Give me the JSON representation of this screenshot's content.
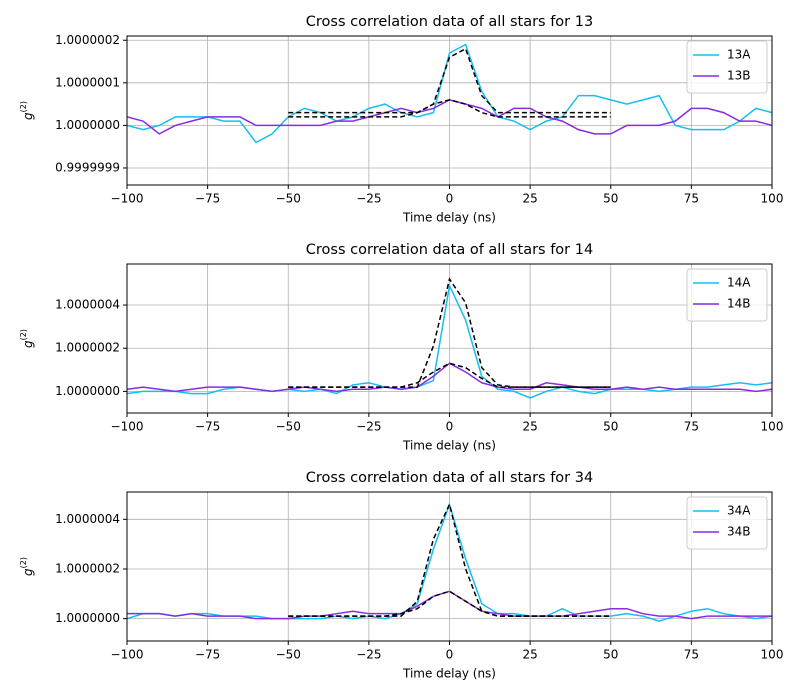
{
  "chart_data": [
    {
      "type": "line",
      "title": "Cross correlation data of all stars for 13",
      "xlabel": "Time delay (ns)",
      "ylabel": "g",
      "ylabel_sup": "(2)",
      "x": [
        -100,
        -95,
        -90,
        -85,
        -80,
        -75,
        -70,
        -65,
        -60,
        -55,
        -50,
        -45,
        -40,
        -35,
        -30,
        -25,
        -20,
        -15,
        -10,
        -5,
        0,
        5,
        10,
        15,
        20,
        25,
        30,
        35,
        40,
        45,
        50,
        55,
        60,
        65,
        70,
        75,
        80,
        85,
        90,
        95,
        100
      ],
      "xlim": [
        -100,
        100
      ],
      "xticks": [
        {
          "value": -100,
          "label": "−100"
        },
        {
          "value": -75,
          "label": "−75"
        },
        {
          "value": -50,
          "label": "−50"
        },
        {
          "value": -25,
          "label": "−25"
        },
        0,
        25,
        50,
        75,
        100
      ],
      "ylim": [
        0.99999986,
        1.00000021
      ],
      "yticks": [
        0.9999999,
        {
          "value": 1,
          "label": "1.0000000"
        },
        1.0000001,
        1.0000002
      ],
      "grid": true,
      "legend": "upper right",
      "series": [
        {
          "name": "13A",
          "color": "#16bff0",
          "values": [
            1,
            0.99999999,
            1,
            1.00000002,
            1.00000002,
            1.00000002,
            1.00000001,
            1.00000001,
            0.99999996,
            0.99999998,
            1.00000002,
            1.00000004,
            1.00000003,
            1.00000001,
            1.00000002,
            1.00000004,
            1.00000005,
            1.00000003,
            1.00000002,
            1.00000003,
            1.00000017,
            1.00000019,
            1.00000008,
            1.00000002,
            1.00000001,
            0.99999999,
            1.00000001,
            1.00000002,
            1.00000007,
            1.00000007,
            1.00000006,
            1.00000005,
            1.00000006,
            1.00000007,
            1,
            0.99999999,
            0.99999999,
            0.99999999,
            1.00000001,
            1.00000004,
            1.00000003
          ]
        },
        {
          "name": "13B",
          "color": "#8a2be2",
          "values": [
            1.00000002,
            1.00000001,
            0.99999998,
            1,
            1.00000001,
            1.00000002,
            1.00000002,
            1.00000002,
            1,
            1,
            1,
            1,
            1,
            1.00000001,
            1.00000001,
            1.00000002,
            1.00000003,
            1.00000004,
            1.00000003,
            1.00000004,
            1.00000006,
            1.00000005,
            1.00000004,
            1.00000002,
            1.00000004,
            1.00000004,
            1.00000002,
            1.00000001,
            0.99999999,
            0.99999998,
            0.99999998,
            1,
            1,
            1,
            1.00000001,
            1.00000004,
            1.00000004,
            1.00000003,
            1.00000001,
            1.00000001,
            1
          ]
        }
      ],
      "fit_x": [
        -50,
        -45,
        -40,
        -35,
        -30,
        -25,
        -20,
        -15,
        -10,
        -5,
        0,
        5,
        10,
        15,
        20,
        25,
        30,
        35,
        40,
        45,
        50
      ],
      "fits": [
        {
          "color": "#000000",
          "values": [
            1.00000003,
            1.00000003,
            1.00000003,
            1.00000003,
            1.00000003,
            1.00000003,
            1.00000003,
            1.00000003,
            1.00000003,
            1.00000005,
            1.00000016,
            1.00000018,
            1.00000007,
            1.00000003,
            1.00000003,
            1.00000003,
            1.00000003,
            1.00000003,
            1.00000003,
            1.00000003,
            1.00000003
          ]
        },
        {
          "color": "#000000",
          "values": [
            1.00000002,
            1.00000002,
            1.00000002,
            1.00000002,
            1.00000002,
            1.00000002,
            1.00000002,
            1.00000002,
            1.00000003,
            1.00000005,
            1.00000006,
            1.00000005,
            1.00000003,
            1.00000002,
            1.00000002,
            1.00000002,
            1.00000002,
            1.00000002,
            1.00000002,
            1.00000002,
            1.00000002
          ]
        }
      ]
    },
    {
      "type": "line",
      "title": "Cross correlation data of all stars for 14",
      "xlabel": "Time delay (ns)",
      "ylabel": "g",
      "ylabel_sup": "(2)",
      "x": [
        -100,
        -95,
        -90,
        -85,
        -80,
        -75,
        -70,
        -65,
        -60,
        -55,
        -50,
        -45,
        -40,
        -35,
        -30,
        -25,
        -20,
        -15,
        -10,
        -5,
        0,
        5,
        10,
        15,
        20,
        25,
        30,
        35,
        40,
        45,
        50,
        55,
        60,
        65,
        70,
        75,
        80,
        85,
        90,
        95,
        100
      ],
      "xlim": [
        -100,
        100
      ],
      "xticks": [
        {
          "value": -100,
          "label": "−100"
        },
        {
          "value": -75,
          "label": "−75"
        },
        {
          "value": -50,
          "label": "−50"
        },
        {
          "value": -25,
          "label": "−25"
        },
        0,
        25,
        50,
        75,
        100
      ],
      "ylim": [
        0.9999999,
        1.00000059
      ],
      "yticks": [
        {
          "value": 1,
          "label": "1.0000000"
        },
        1.0000002,
        1.0000004
      ],
      "grid": true,
      "legend": "upper right",
      "series": [
        {
          "name": "14A",
          "color": "#16bff0",
          "values": [
            0.99999999,
            1,
            1,
            1,
            0.99999999,
            0.99999999,
            1.00000001,
            1.00000002,
            1.00000001,
            1,
            1.00000001,
            1,
            1.00000001,
            0.99999999,
            1.00000003,
            1.00000004,
            1.00000002,
            1.00000001,
            1.00000002,
            1.00000005,
            1.00000049,
            1.00000033,
            1.00000007,
            1.00000001,
            1,
            0.99999997,
            1,
            1.00000002,
            1,
            0.99999999,
            1.00000001,
            1.00000001,
            1.00000001,
            1,
            1.00000001,
            1.00000002,
            1.00000002,
            1.00000003,
            1.00000004,
            1.00000003,
            1.00000004
          ]
        },
        {
          "name": "14B",
          "color": "#8a2be2",
          "values": [
            1.00000001,
            1.00000002,
            1.00000001,
            1,
            1.00000001,
            1.00000002,
            1.00000002,
            1.00000002,
            1.00000001,
            1,
            1.00000001,
            1.00000002,
            1.00000001,
            1,
            1.00000001,
            1.00000001,
            1.00000002,
            1.00000001,
            1.00000002,
            1.00000007,
            1.00000013,
            1.00000009,
            1.00000004,
            1.00000002,
            1.00000001,
            1.00000001,
            1.00000004,
            1.00000003,
            1.00000002,
            1.00000001,
            1.00000001,
            1.00000002,
            1.00000001,
            1.00000002,
            1.00000001,
            1.00000001,
            1.00000001,
            1.00000001,
            1.00000001,
            1,
            1.00000001
          ]
        }
      ],
      "fit_x": [
        -50,
        -45,
        -40,
        -35,
        -30,
        -25,
        -20,
        -15,
        -10,
        -5,
        0,
        5,
        10,
        15,
        20,
        25,
        30,
        35,
        40,
        45,
        50
      ],
      "fits": [
        {
          "color": "#000000",
          "values": [
            1.00000002,
            1.00000002,
            1.00000002,
            1.00000002,
            1.00000002,
            1.00000002,
            1.00000002,
            1.00000002,
            1.00000002,
            1.00000021,
            1.00000052,
            1.00000041,
            1.00000011,
            1.00000003,
            1.00000002,
            1.00000002,
            1.00000002,
            1.00000002,
            1.00000002,
            1.00000002,
            1.00000002
          ]
        },
        {
          "color": "#000000",
          "values": [
            1.00000002,
            1.00000002,
            1.00000002,
            1.00000002,
            1.00000002,
            1.00000002,
            1.00000002,
            1.00000002,
            1.00000004,
            1.00000009,
            1.00000013,
            1.00000011,
            1.00000006,
            1.00000002,
            1.00000002,
            1.00000002,
            1.00000002,
            1.00000002,
            1.00000002,
            1.00000002,
            1.00000002
          ]
        }
      ]
    },
    {
      "type": "line",
      "title": "Cross correlation data of all stars for 34",
      "xlabel": "Time delay (ns)",
      "ylabel": "g",
      "ylabel_sup": "(2)",
      "x": [
        -100,
        -95,
        -90,
        -85,
        -80,
        -75,
        -70,
        -65,
        -60,
        -55,
        -50,
        -45,
        -40,
        -35,
        -30,
        -25,
        -20,
        -15,
        -10,
        -5,
        0,
        5,
        10,
        15,
        20,
        25,
        30,
        35,
        40,
        45,
        50,
        55,
        60,
        65,
        70,
        75,
        80,
        85,
        90,
        95,
        100
      ],
      "xlim": [
        -100,
        100
      ],
      "xticks": [
        {
          "value": -100,
          "label": "−100"
        },
        {
          "value": -75,
          "label": "−75"
        },
        {
          "value": -50,
          "label": "−50"
        },
        {
          "value": -25,
          "label": "−25"
        },
        0,
        25,
        50,
        75,
        100
      ],
      "ylim": [
        0.99999991,
        1.00000051
      ],
      "yticks": [
        {
          "value": 1,
          "label": "1.0000000"
        },
        1.0000002,
        1.0000004
      ],
      "grid": true,
      "legend": "upper right",
      "series": [
        {
          "name": "34A",
          "color": "#16bff0",
          "values": [
            1,
            1.00000002,
            1.00000002,
            1.00000001,
            1.00000002,
            1.00000002,
            1.00000001,
            1.00000001,
            1.00000001,
            1,
            1,
            1,
            1,
            1.00000001,
            1,
            1.00000001,
            1,
            1.00000002,
            1.00000006,
            1.00000028,
            1.00000046,
            1.00000024,
            1.00000006,
            1.00000002,
            1.00000002,
            1.00000001,
            1.00000001,
            1.00000004,
            1.00000001,
            1.00000001,
            1.00000001,
            1.00000002,
            1.00000001,
            0.99999999,
            1.00000001,
            1.00000003,
            1.00000004,
            1.00000002,
            1.00000001,
            1,
            1.00000001
          ]
        },
        {
          "name": "34B",
          "color": "#8a2be2",
          "values": [
            1.00000002,
            1.00000002,
            1.00000002,
            1.00000001,
            1.00000002,
            1.00000001,
            1.00000001,
            1.00000001,
            1,
            1,
            1,
            1.00000001,
            1.00000001,
            1.00000002,
            1.00000003,
            1.00000002,
            1.00000002,
            1.00000002,
            1.00000005,
            1.00000009,
            1.00000011,
            1.00000007,
            1.00000003,
            1.00000002,
            1.00000001,
            1.00000001,
            1.00000001,
            1.00000001,
            1.00000002,
            1.00000003,
            1.00000004,
            1.00000004,
            1.00000002,
            1.00000001,
            1.00000001,
            1,
            1.00000001,
            1.00000001,
            1.00000001,
            1.00000001,
            1.00000001
          ]
        }
      ],
      "fit_x": [
        -50,
        -45,
        -40,
        -35,
        -30,
        -25,
        -20,
        -15,
        -10,
        -5,
        0,
        5,
        10,
        15,
        20,
        25,
        30,
        35,
        40,
        45,
        50
      ],
      "fits": [
        {
          "color": "#000000",
          "values": [
            1.00000001,
            1.00000001,
            1.00000001,
            1.00000001,
            1.00000001,
            1.00000001,
            1.00000001,
            1.00000001,
            1.00000007,
            1.00000032,
            1.00000046,
            1.0000002,
            1.00000003,
            1.00000001,
            1.00000001,
            1.00000001,
            1.00000001,
            1.00000001,
            1.00000001,
            1.00000001,
            1.00000001
          ]
        },
        {
          "color": "#000000",
          "values": [
            1.00000001,
            1.00000001,
            1.00000001,
            1.00000001,
            1.00000001,
            1.00000001,
            1.00000001,
            1.00000002,
            1.00000004,
            1.00000009,
            1.00000011,
            1.00000007,
            1.00000003,
            1.00000001,
            1.00000001,
            1.00000001,
            1.00000001,
            1.00000001,
            1.00000001,
            1.00000001,
            1.00000001
          ]
        }
      ]
    }
  ]
}
